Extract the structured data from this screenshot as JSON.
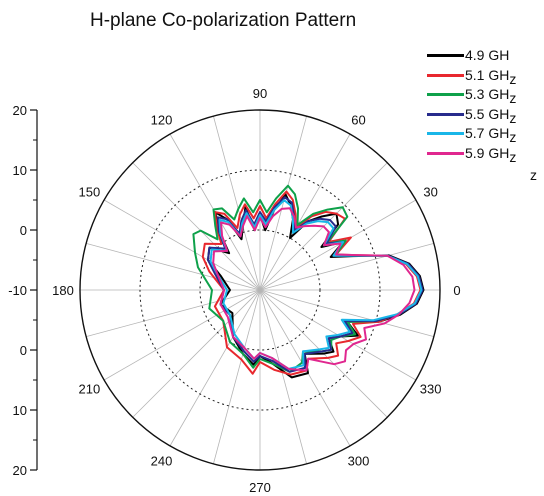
{
  "chart_data": {
    "type": "polar-line",
    "title": "H-plane Co-polarization Pattern",
    "radial_axis": {
      "range": [
        -40,
        20
      ],
      "ticks_left": [
        "20",
        "10",
        "0",
        "-10",
        "0",
        "10",
        "20"
      ],
      "grid_rings": [
        -20,
        0
      ],
      "grid_ring_style": "dotted"
    },
    "angular_axis": {
      "tick_labels": [
        "0",
        "30",
        "60",
        "90",
        "120",
        "150",
        "180",
        "210",
        "240",
        "270",
        "300",
        "330"
      ],
      "grid_spokes_every_deg": 15
    },
    "legend_position": "top-right",
    "series": [
      {
        "name": "4.9 GH",
        "label_wrap": "z",
        "color": "#000000",
        "points": [
          [
            0,
            14.5
          ],
          [
            5,
            13.5
          ],
          [
            10,
            10.5
          ],
          [
            15,
            4.5
          ],
          [
            20,
            -7
          ],
          [
            25,
            -14
          ],
          [
            30,
            -8
          ],
          [
            35,
            -15
          ],
          [
            40,
            -6
          ],
          [
            45,
            -4
          ],
          [
            50,
            -8
          ],
          [
            55,
            -12
          ],
          [
            60,
            -20
          ],
          [
            65,
            -14
          ],
          [
            70,
            -10
          ],
          [
            75,
            -7
          ],
          [
            80,
            -13
          ],
          [
            85,
            -20
          ],
          [
            90,
            -15
          ],
          [
            95,
            -20
          ],
          [
            100,
            -12
          ],
          [
            105,
            -18
          ],
          [
            110,
            -22
          ],
          [
            115,
            -14
          ],
          [
            120,
            -10
          ],
          [
            125,
            -17
          ],
          [
            130,
            -24
          ],
          [
            140,
            -18
          ],
          [
            150,
            -20
          ],
          [
            160,
            -26
          ],
          [
            180,
            -30
          ],
          [
            200,
            -26
          ],
          [
            220,
            -28
          ],
          [
            240,
            -22
          ],
          [
            255,
            -18
          ],
          [
            265,
            -15
          ],
          [
            270,
            -18
          ],
          [
            280,
            -15
          ],
          [
            290,
            -9
          ],
          [
            300,
            -8
          ],
          [
            305,
            -14
          ],
          [
            315,
            -10
          ],
          [
            320,
            -8
          ],
          [
            325,
            -12
          ],
          [
            330,
            -9
          ],
          [
            335,
            -4
          ],
          [
            340,
            -9
          ],
          [
            345,
            1
          ],
          [
            350,
            7.5
          ],
          [
            355,
            12.5
          ],
          [
            360,
            14.5
          ]
        ]
      },
      {
        "name": "5.1 GHz",
        "color": "#e8282e",
        "points": [
          [
            0,
            13.5
          ],
          [
            5,
            12.5
          ],
          [
            10,
            9.5
          ],
          [
            15,
            4
          ],
          [
            20,
            -6
          ],
          [
            25,
            -12
          ],
          [
            30,
            -5
          ],
          [
            35,
            -12
          ],
          [
            40,
            -3
          ],
          [
            45,
            -4
          ],
          [
            50,
            -6
          ],
          [
            55,
            -10
          ],
          [
            60,
            -16
          ],
          [
            65,
            -12
          ],
          [
            70,
            -8
          ],
          [
            75,
            -6
          ],
          [
            80,
            -11
          ],
          [
            85,
            -16
          ],
          [
            90,
            -12
          ],
          [
            95,
            -16
          ],
          [
            100,
            -11
          ],
          [
            105,
            -14
          ],
          [
            110,
            -18
          ],
          [
            115,
            -12
          ],
          [
            120,
            -10
          ],
          [
            125,
            -15
          ],
          [
            130,
            -20
          ],
          [
            140,
            -16
          ],
          [
            150,
            -18
          ],
          [
            160,
            -22
          ],
          [
            180,
            -28
          ],
          [
            200,
            -24
          ],
          [
            220,
            -24
          ],
          [
            240,
            -18
          ],
          [
            255,
            -16
          ],
          [
            265,
            -12
          ],
          [
            270,
            -16
          ],
          [
            280,
            -13
          ],
          [
            290,
            -10
          ],
          [
            300,
            -9
          ],
          [
            305,
            -12
          ],
          [
            315,
            -8
          ],
          [
            320,
            -6
          ],
          [
            325,
            -9
          ],
          [
            330,
            -6
          ],
          [
            335,
            -3
          ],
          [
            340,
            -7
          ],
          [
            345,
            1
          ],
          [
            350,
            6.5
          ],
          [
            355,
            11.5
          ],
          [
            360,
            13.5
          ]
        ]
      },
      {
        "name": "5.3 GHz",
        "color": "#0ea14a",
        "points": [
          [
            0,
            14
          ],
          [
            5,
            13
          ],
          [
            10,
            10
          ],
          [
            15,
            4
          ],
          [
            20,
            -6.5
          ],
          [
            25,
            -12
          ],
          [
            30,
            -7
          ],
          [
            35,
            -13
          ],
          [
            40,
            -2
          ],
          [
            45,
            -1
          ],
          [
            50,
            -5
          ],
          [
            55,
            -9
          ],
          [
            60,
            -15
          ],
          [
            65,
            -10
          ],
          [
            70,
            -6
          ],
          [
            75,
            -4
          ],
          [
            80,
            -9
          ],
          [
            85,
            -14
          ],
          [
            90,
            -10
          ],
          [
            95,
            -14
          ],
          [
            100,
            -9
          ],
          [
            105,
            -12
          ],
          [
            110,
            -15
          ],
          [
            115,
            -10
          ],
          [
            120,
            -9
          ],
          [
            125,
            -14
          ],
          [
            130,
            -18
          ],
          [
            135,
            -12
          ],
          [
            140,
            -11
          ],
          [
            150,
            -15
          ],
          [
            160,
            -18
          ],
          [
            180,
            -24
          ],
          [
            200,
            -22
          ],
          [
            220,
            -24
          ],
          [
            240,
            -20
          ],
          [
            255,
            -18
          ],
          [
            265,
            -14
          ],
          [
            270,
            -17
          ],
          [
            280,
            -15
          ],
          [
            290,
            -11
          ],
          [
            300,
            -12
          ],
          [
            305,
            -15
          ],
          [
            315,
            -11
          ],
          [
            320,
            -9
          ],
          [
            325,
            -11
          ],
          [
            330,
            -9
          ],
          [
            335,
            -5
          ],
          [
            340,
            -9
          ],
          [
            345,
            0
          ],
          [
            350,
            7
          ],
          [
            355,
            12
          ],
          [
            360,
            14
          ]
        ]
      },
      {
        "name": "5.5 GHz",
        "color": "#272b8c",
        "points": [
          [
            0,
            14.2
          ],
          [
            5,
            13.2
          ],
          [
            10,
            10.2
          ],
          [
            15,
            4.2
          ],
          [
            20,
            -6.5
          ],
          [
            25,
            -13
          ],
          [
            30,
            -8
          ],
          [
            35,
            -13
          ],
          [
            40,
            -7
          ],
          [
            45,
            -7
          ],
          [
            50,
            -9
          ],
          [
            55,
            -12
          ],
          [
            60,
            -17
          ],
          [
            65,
            -13
          ],
          [
            70,
            -9
          ],
          [
            75,
            -8
          ],
          [
            80,
            -12
          ],
          [
            85,
            -17
          ],
          [
            90,
            -14
          ],
          [
            95,
            -18
          ],
          [
            100,
            -13
          ],
          [
            105,
            -16
          ],
          [
            110,
            -20
          ],
          [
            115,
            -14
          ],
          [
            120,
            -12
          ],
          [
            125,
            -16
          ],
          [
            130,
            -22
          ],
          [
            140,
            -18
          ],
          [
            150,
            -20
          ],
          [
            160,
            -24
          ],
          [
            180,
            -28
          ],
          [
            200,
            -26
          ],
          [
            220,
            -27
          ],
          [
            240,
            -22
          ],
          [
            255,
            -19
          ],
          [
            265,
            -16
          ],
          [
            270,
            -18
          ],
          [
            280,
            -16
          ],
          [
            290,
            -11
          ],
          [
            300,
            -10
          ],
          [
            305,
            -14
          ],
          [
            315,
            -11
          ],
          [
            320,
            -9
          ],
          [
            325,
            -12
          ],
          [
            330,
            -9
          ],
          [
            335,
            -6
          ],
          [
            340,
            -10
          ],
          [
            345,
            0
          ],
          [
            350,
            7
          ],
          [
            355,
            12.2
          ],
          [
            360,
            14.2
          ]
        ]
      },
      {
        "name": "5.7 GHz",
        "color": "#19b6e8",
        "points": [
          [
            0,
            13.8
          ],
          [
            5,
            12.8
          ],
          [
            10,
            9.8
          ],
          [
            15,
            4
          ],
          [
            20,
            -6.5
          ],
          [
            25,
            -13
          ],
          [
            30,
            -8
          ],
          [
            35,
            -14
          ],
          [
            40,
            -8
          ],
          [
            45,
            -8
          ],
          [
            50,
            -10
          ],
          [
            55,
            -13
          ],
          [
            60,
            -18
          ],
          [
            65,
            -14
          ],
          [
            70,
            -10
          ],
          [
            75,
            -9
          ],
          [
            80,
            -13
          ],
          [
            85,
            -18
          ],
          [
            90,
            -15
          ],
          [
            95,
            -19
          ],
          [
            100,
            -14
          ],
          [
            105,
            -17
          ],
          [
            110,
            -21
          ],
          [
            115,
            -15
          ],
          [
            120,
            -13
          ],
          [
            125,
            -17
          ],
          [
            130,
            -23
          ],
          [
            140,
            -19
          ],
          [
            150,
            -21
          ],
          [
            160,
            -25
          ],
          [
            180,
            -29
          ],
          [
            200,
            -27
          ],
          [
            220,
            -27
          ],
          [
            240,
            -23
          ],
          [
            255,
            -20
          ],
          [
            265,
            -17
          ],
          [
            270,
            -19
          ],
          [
            280,
            -17
          ],
          [
            290,
            -12
          ],
          [
            300,
            -11
          ],
          [
            305,
            -15
          ],
          [
            315,
            -12
          ],
          [
            320,
            -10
          ],
          [
            325,
            -13
          ],
          [
            330,
            -10
          ],
          [
            335,
            -7
          ],
          [
            340,
            -11
          ],
          [
            345,
            -1
          ],
          [
            350,
            6.5
          ],
          [
            355,
            11.8
          ],
          [
            360,
            13.8
          ]
        ]
      },
      {
        "name": "5.9 GHz",
        "color": "#e0278f",
        "points": [
          [
            0,
            11.5
          ],
          [
            5,
            11
          ],
          [
            10,
            8.5
          ],
          [
            15,
            4
          ],
          [
            20,
            -6
          ],
          [
            25,
            -12
          ],
          [
            30,
            -9
          ],
          [
            35,
            -14
          ],
          [
            40,
            -10
          ],
          [
            45,
            -10
          ],
          [
            50,
            -12
          ],
          [
            55,
            -14
          ],
          [
            60,
            -16
          ],
          [
            65,
            -13
          ],
          [
            70,
            -11
          ],
          [
            75,
            -12
          ],
          [
            80,
            -15
          ],
          [
            85,
            -19
          ],
          [
            90,
            -16
          ],
          [
            95,
            -20
          ],
          [
            100,
            -15
          ],
          [
            105,
            -18
          ],
          [
            110,
            -21
          ],
          [
            115,
            -16
          ],
          [
            120,
            -14
          ],
          [
            125,
            -18
          ],
          [
            130,
            -23
          ],
          [
            140,
            -20
          ],
          [
            150,
            -22
          ],
          [
            160,
            -25
          ],
          [
            180,
            -28
          ],
          [
            200,
            -26
          ],
          [
            220,
            -26
          ],
          [
            240,
            -22
          ],
          [
            255,
            -20
          ],
          [
            265,
            -17
          ],
          [
            270,
            -19
          ],
          [
            280,
            -17
          ],
          [
            290,
            -12
          ],
          [
            300,
            -9
          ],
          [
            305,
            -12
          ],
          [
            315,
            -5
          ],
          [
            320,
            -3
          ],
          [
            325,
            -5
          ],
          [
            330,
            -4
          ],
          [
            335,
            -1
          ],
          [
            340,
            -3
          ],
          [
            345,
            3
          ],
          [
            350,
            7
          ],
          [
            355,
            10
          ],
          [
            360,
            11.5
          ]
        ]
      }
    ]
  }
}
